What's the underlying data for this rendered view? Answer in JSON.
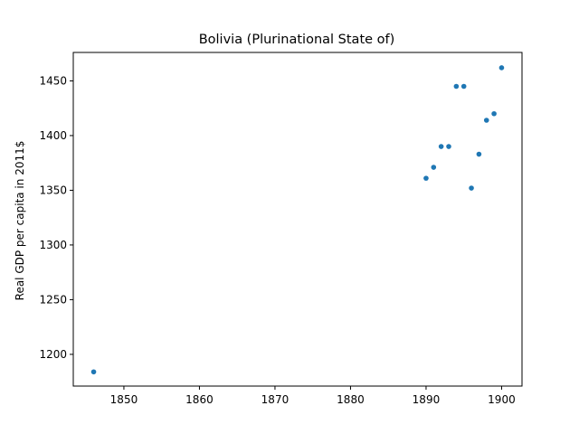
{
  "chart_data": {
    "type": "scatter",
    "title": "Bolivia (Plurinational State of)",
    "xlabel": "",
    "ylabel": "Real GDP per capita in 2011$",
    "xlim": [
      1843.3,
      1902.7
    ],
    "ylim": [
      1171,
      1476
    ],
    "xticks": [
      1850,
      1860,
      1870,
      1880,
      1890,
      1900
    ],
    "yticks": [
      1200,
      1250,
      1300,
      1350,
      1400,
      1450
    ],
    "grid": false,
    "color": "#1f77b4",
    "points": [
      {
        "x": 1846,
        "y": 1184
      },
      {
        "x": 1890,
        "y": 1361
      },
      {
        "x": 1891,
        "y": 1371
      },
      {
        "x": 1892,
        "y": 1390
      },
      {
        "x": 1893,
        "y": 1390
      },
      {
        "x": 1894,
        "y": 1445
      },
      {
        "x": 1895,
        "y": 1445
      },
      {
        "x": 1896,
        "y": 1352
      },
      {
        "x": 1897,
        "y": 1383
      },
      {
        "x": 1898,
        "y": 1414
      },
      {
        "x": 1899,
        "y": 1420
      },
      {
        "x": 1900,
        "y": 1462
      }
    ]
  }
}
